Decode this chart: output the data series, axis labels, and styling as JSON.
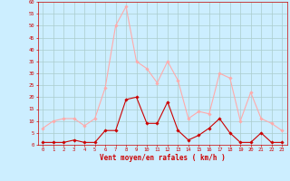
{
  "hours": [
    0,
    1,
    2,
    3,
    4,
    5,
    6,
    7,
    8,
    9,
    10,
    11,
    12,
    13,
    14,
    15,
    16,
    17,
    18,
    19,
    20,
    21,
    22,
    23
  ],
  "wind_avg": [
    1,
    1,
    1,
    2,
    1,
    1,
    6,
    6,
    19,
    20,
    9,
    9,
    18,
    6,
    2,
    4,
    7,
    11,
    5,
    1,
    1,
    5,
    1,
    1
  ],
  "wind_gust": [
    7,
    10,
    11,
    11,
    8,
    11,
    24,
    50,
    58,
    35,
    32,
    26,
    35,
    27,
    11,
    14,
    13,
    30,
    28,
    10,
    22,
    11,
    9,
    6
  ],
  "line_avg_color": "#cc0000",
  "line_gust_color": "#ffaaaa",
  "marker_avg_color": "#cc0000",
  "marker_gust_color": "#ffaaaa",
  "background_color": "#cceeff",
  "grid_color": "#aacccc",
  "xlabel": "Vent moyen/en rafales ( km/h )",
  "tick_color": "#cc0000",
  "ylim": [
    0,
    60
  ],
  "yticks": [
    0,
    5,
    10,
    15,
    20,
    25,
    30,
    35,
    40,
    45,
    50,
    55,
    60
  ],
  "xlim": [
    -0.5,
    23.5
  ],
  "tick_fontsize": 4.0,
  "xlabel_fontsize": 5.5
}
